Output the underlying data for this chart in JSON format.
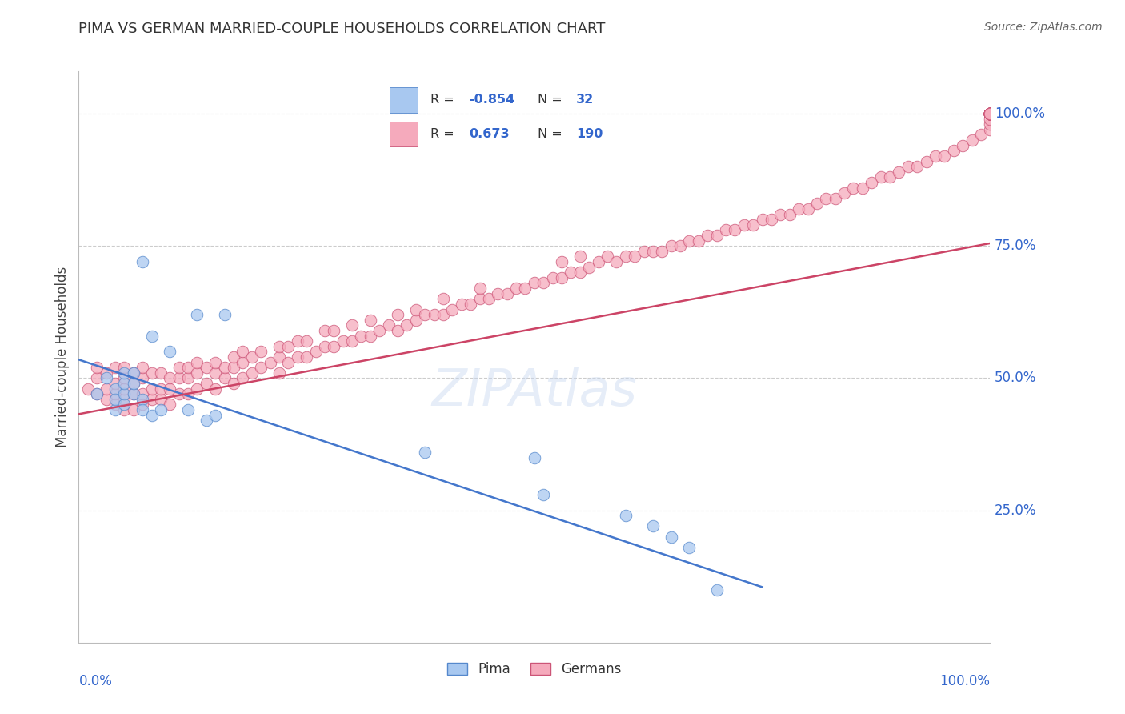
{
  "title": "PIMA VS GERMAN MARRIED-COUPLE HOUSEHOLDS CORRELATION CHART",
  "source": "Source: ZipAtlas.com",
  "ylabel": "Married-couple Households",
  "ytick_labels": [
    "100.0%",
    "75.0%",
    "50.0%",
    "25.0%"
  ],
  "ytick_positions": [
    1.0,
    0.75,
    0.5,
    0.25
  ],
  "xlim": [
    0.0,
    1.0
  ],
  "ylim": [
    0.0,
    1.08
  ],
  "pima_R": -0.854,
  "pima_N": 32,
  "german_R": 0.673,
  "german_N": 190,
  "pima_color": "#A8C8F0",
  "pima_edge_color": "#5588CC",
  "pima_line_color": "#4477CC",
  "german_color": "#F5AABC",
  "german_edge_color": "#CC5577",
  "german_line_color": "#CC4466",
  "background_color": "#FFFFFF",
  "watermark": "ZIPAtlas",
  "pima_x": [
    0.02,
    0.03,
    0.04,
    0.04,
    0.04,
    0.05,
    0.05,
    0.05,
    0.05,
    0.06,
    0.06,
    0.06,
    0.07,
    0.07,
    0.07,
    0.08,
    0.08,
    0.09,
    0.1,
    0.12,
    0.13,
    0.14,
    0.15,
    0.16,
    0.38,
    0.5,
    0.51,
    0.6,
    0.63,
    0.65,
    0.67,
    0.7
  ],
  "pima_y": [
    0.47,
    0.5,
    0.48,
    0.44,
    0.46,
    0.45,
    0.47,
    0.49,
    0.51,
    0.47,
    0.49,
    0.51,
    0.46,
    0.72,
    0.44,
    0.58,
    0.43,
    0.44,
    0.55,
    0.44,
    0.62,
    0.42,
    0.43,
    0.62,
    0.36,
    0.35,
    0.28,
    0.24,
    0.22,
    0.2,
    0.18,
    0.1
  ],
  "german_x": [
    0.01,
    0.02,
    0.02,
    0.02,
    0.03,
    0.03,
    0.03,
    0.04,
    0.04,
    0.04,
    0.04,
    0.05,
    0.05,
    0.05,
    0.05,
    0.05,
    0.06,
    0.06,
    0.06,
    0.06,
    0.07,
    0.07,
    0.07,
    0.07,
    0.08,
    0.08,
    0.08,
    0.09,
    0.09,
    0.09,
    0.1,
    0.1,
    0.1,
    0.11,
    0.11,
    0.11,
    0.12,
    0.12,
    0.12,
    0.13,
    0.13,
    0.13,
    0.14,
    0.14,
    0.15,
    0.15,
    0.15,
    0.16,
    0.16,
    0.17,
    0.17,
    0.17,
    0.18,
    0.18,
    0.18,
    0.19,
    0.19,
    0.2,
    0.2,
    0.21,
    0.22,
    0.22,
    0.22,
    0.23,
    0.23,
    0.24,
    0.24,
    0.25,
    0.25,
    0.26,
    0.27,
    0.27,
    0.28,
    0.28,
    0.29,
    0.3,
    0.3,
    0.31,
    0.32,
    0.32,
    0.33,
    0.34,
    0.35,
    0.35,
    0.36,
    0.37,
    0.37,
    0.38,
    0.39,
    0.4,
    0.4,
    0.41,
    0.42,
    0.43,
    0.44,
    0.44,
    0.45,
    0.46,
    0.47,
    0.48,
    0.49,
    0.5,
    0.51,
    0.52,
    0.53,
    0.53,
    0.54,
    0.55,
    0.55,
    0.56,
    0.57,
    0.58,
    0.59,
    0.6,
    0.61,
    0.62,
    0.63,
    0.64,
    0.65,
    0.66,
    0.67,
    0.68,
    0.69,
    0.7,
    0.71,
    0.72,
    0.73,
    0.74,
    0.75,
    0.76,
    0.77,
    0.78,
    0.79,
    0.8,
    0.81,
    0.82,
    0.83,
    0.84,
    0.85,
    0.86,
    0.87,
    0.88,
    0.89,
    0.9,
    0.91,
    0.92,
    0.93,
    0.94,
    0.95,
    0.96,
    0.97,
    0.98,
    0.99,
    1.0,
    1.0,
    1.0,
    1.0,
    1.0,
    1.0,
    1.0,
    1.0,
    1.0,
    1.0,
    1.0,
    1.0,
    1.0,
    1.0,
    1.0,
    1.0,
    1.0,
    1.0,
    1.0,
    1.0,
    1.0,
    1.0,
    1.0,
    1.0,
    1.0,
    1.0,
    1.0,
    1.0,
    1.0,
    1.0,
    1.0,
    1.0,
    1.0,
    1.0,
    1.0,
    1.0,
    1.0
  ],
  "german_y": [
    0.48,
    0.47,
    0.5,
    0.52,
    0.46,
    0.48,
    0.51,
    0.45,
    0.47,
    0.49,
    0.52,
    0.44,
    0.46,
    0.48,
    0.5,
    0.52,
    0.44,
    0.47,
    0.49,
    0.51,
    0.45,
    0.47,
    0.5,
    0.52,
    0.46,
    0.48,
    0.51,
    0.46,
    0.48,
    0.51,
    0.45,
    0.48,
    0.5,
    0.47,
    0.5,
    0.52,
    0.47,
    0.5,
    0.52,
    0.48,
    0.51,
    0.53,
    0.49,
    0.52,
    0.48,
    0.51,
    0.53,
    0.5,
    0.52,
    0.49,
    0.52,
    0.54,
    0.5,
    0.53,
    0.55,
    0.51,
    0.54,
    0.52,
    0.55,
    0.53,
    0.51,
    0.54,
    0.56,
    0.53,
    0.56,
    0.54,
    0.57,
    0.54,
    0.57,
    0.55,
    0.56,
    0.59,
    0.56,
    0.59,
    0.57,
    0.57,
    0.6,
    0.58,
    0.58,
    0.61,
    0.59,
    0.6,
    0.59,
    0.62,
    0.6,
    0.61,
    0.63,
    0.62,
    0.62,
    0.62,
    0.65,
    0.63,
    0.64,
    0.64,
    0.65,
    0.67,
    0.65,
    0.66,
    0.66,
    0.67,
    0.67,
    0.68,
    0.68,
    0.69,
    0.69,
    0.72,
    0.7,
    0.7,
    0.73,
    0.71,
    0.72,
    0.73,
    0.72,
    0.73,
    0.73,
    0.74,
    0.74,
    0.74,
    0.75,
    0.75,
    0.76,
    0.76,
    0.77,
    0.77,
    0.78,
    0.78,
    0.79,
    0.79,
    0.8,
    0.8,
    0.81,
    0.81,
    0.82,
    0.82,
    0.83,
    0.84,
    0.84,
    0.85,
    0.86,
    0.86,
    0.87,
    0.88,
    0.88,
    0.89,
    0.9,
    0.9,
    0.91,
    0.92,
    0.92,
    0.93,
    0.94,
    0.95,
    0.96,
    0.97,
    0.98,
    0.99,
    1.0,
    1.0,
    1.0,
    1.0,
    1.0,
    1.0,
    1.0,
    1.0,
    1.0,
    1.0,
    1.0,
    1.0,
    1.0,
    1.0,
    1.0,
    1.0,
    1.0,
    1.0,
    1.0,
    1.0,
    1.0,
    1.0,
    1.0,
    1.0,
    1.0,
    1.0,
    1.0,
    1.0,
    1.0,
    1.0,
    1.0,
    1.0,
    1.0,
    1.0
  ],
  "pima_line_x0": 0.0,
  "pima_line_y0": 0.535,
  "pima_line_x1": 0.75,
  "pima_line_y1": 0.105,
  "german_line_x0": 0.0,
  "german_line_y0": 0.432,
  "german_line_x1": 1.0,
  "german_line_y1": 0.755
}
